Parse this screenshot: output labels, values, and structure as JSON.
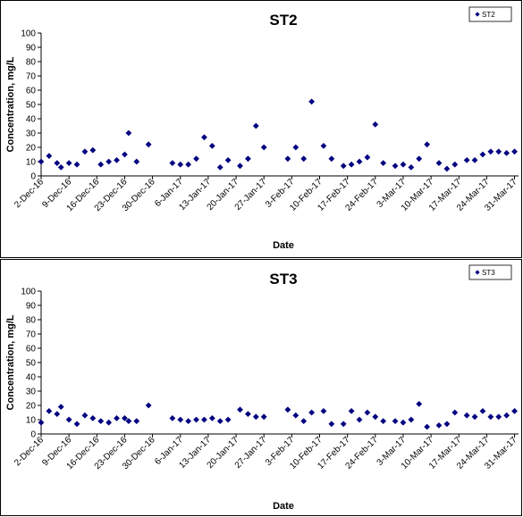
{
  "chart_data": [
    {
      "type": "scatter",
      "title": "ST2",
      "xlabel": "Date",
      "ylabel": "Concentration, mg/L",
      "ylim": [
        0,
        100
      ],
      "yticks": [
        0,
        10,
        20,
        30,
        40,
        50,
        60,
        70,
        80,
        90,
        100
      ],
      "xlim": [
        "2016-12-02",
        "2017-04-01"
      ],
      "xticks": [
        "2016-12-02",
        "2016-12-09",
        "2016-12-16",
        "2016-12-23",
        "2016-12-30",
        "2017-01-06",
        "2017-01-13",
        "2017-01-20",
        "2017-01-27",
        "2017-02-03",
        "2017-02-10",
        "2017-02-17",
        "2017-02-24",
        "2017-03-03",
        "2017-03-10",
        "2017-03-17",
        "2017-03-24",
        "2017-03-31"
      ],
      "xtick_labels": [
        "2-Dec-16",
        "9-Dec-16",
        "16-Dec-16",
        "23-Dec-16",
        "30-Dec-16",
        "6-Jan-17",
        "13-Jan-17",
        "20-Jan-17",
        "27-Jan-17",
        "3-Feb-17",
        "10-Feb-17",
        "17-Feb-17",
        "24-Feb-17",
        "3-Mar-17",
        "10-Mar-17",
        "17-Mar-17",
        "24-Mar-17",
        "31-Mar-17"
      ],
      "legend": "top-right",
      "grid": false,
      "series": [
        {
          "name": "ST2",
          "color": "#000080",
          "x": [
            "2016-12-02",
            "2016-12-04",
            "2016-12-06",
            "2016-12-07",
            "2016-12-09",
            "2016-12-11",
            "2016-12-13",
            "2016-12-15",
            "2016-12-17",
            "2016-12-19",
            "2016-12-21",
            "2016-12-23",
            "2016-12-24",
            "2016-12-26",
            "2016-12-29",
            "2017-01-04",
            "2017-01-06",
            "2017-01-08",
            "2017-01-10",
            "2017-01-12",
            "2017-01-14",
            "2017-01-16",
            "2017-01-18",
            "2017-01-21",
            "2017-01-23",
            "2017-01-25",
            "2017-01-27",
            "2017-02-02",
            "2017-02-04",
            "2017-02-06",
            "2017-02-08",
            "2017-02-11",
            "2017-02-13",
            "2017-02-16",
            "2017-02-18",
            "2017-02-20",
            "2017-02-22",
            "2017-02-24",
            "2017-02-26",
            "2017-03-01",
            "2017-03-03",
            "2017-03-05",
            "2017-03-07",
            "2017-03-09",
            "2017-03-12",
            "2017-03-14",
            "2017-03-16",
            "2017-03-19",
            "2017-03-21",
            "2017-03-23",
            "2017-03-25",
            "2017-03-27",
            "2017-03-29",
            "2017-03-31"
          ],
          "y": [
            10,
            14,
            9,
            6,
            9,
            8,
            17,
            18,
            8,
            10,
            11,
            15,
            30,
            10,
            22,
            9,
            8,
            8,
            12,
            27,
            21,
            6,
            11,
            7,
            12,
            35,
            20,
            12,
            20,
            12,
            52,
            21,
            12,
            7,
            8,
            10,
            13,
            36,
            9,
            7,
            8,
            6,
            12,
            22,
            9,
            5,
            8,
            11,
            11,
            15,
            17,
            17,
            16,
            17
          ]
        }
      ]
    },
    {
      "type": "scatter",
      "title": "ST3",
      "xlabel": "Date",
      "ylabel": "Concentration, mg/L",
      "ylim": [
        0,
        100
      ],
      "yticks": [
        0,
        10,
        20,
        30,
        40,
        50,
        60,
        70,
        80,
        90,
        100
      ],
      "xlim": [
        "2016-12-02",
        "2017-04-01"
      ],
      "xticks": [
        "2016-12-02",
        "2016-12-09",
        "2016-12-16",
        "2016-12-23",
        "2016-12-30",
        "2017-01-06",
        "2017-01-13",
        "2017-01-20",
        "2017-01-27",
        "2017-02-03",
        "2017-02-10",
        "2017-02-17",
        "2017-02-24",
        "2017-03-03",
        "2017-03-10",
        "2017-03-17",
        "2017-03-24",
        "2017-03-31"
      ],
      "xtick_labels": [
        "2-Dec-16",
        "9-Dec-16",
        "16-Dec-16",
        "23-Dec-16",
        "30-Dec-16",
        "6-Jan-17",
        "13-Jan-17",
        "20-Jan-17",
        "27-Jan-17",
        "3-Feb-17",
        "10-Feb-17",
        "17-Feb-17",
        "24-Feb-17",
        "3-Mar-17",
        "10-Mar-17",
        "17-Mar-17",
        "24-Mar-17",
        "31-Mar-17"
      ],
      "legend": "top-right",
      "grid": false,
      "series": [
        {
          "name": "ST3",
          "color": "#000080",
          "x": [
            "2016-12-02",
            "2016-12-04",
            "2016-12-06",
            "2016-12-07",
            "2016-12-09",
            "2016-12-11",
            "2016-12-13",
            "2016-12-15",
            "2016-12-17",
            "2016-12-19",
            "2016-12-21",
            "2016-12-23",
            "2016-12-24",
            "2016-12-26",
            "2016-12-29",
            "2017-01-04",
            "2017-01-06",
            "2017-01-08",
            "2017-01-10",
            "2017-01-12",
            "2017-01-14",
            "2017-01-16",
            "2017-01-18",
            "2017-01-21",
            "2017-01-23",
            "2017-01-25",
            "2017-01-27",
            "2017-02-02",
            "2017-02-04",
            "2017-02-06",
            "2017-02-08",
            "2017-02-11",
            "2017-02-13",
            "2017-02-16",
            "2017-02-18",
            "2017-02-20",
            "2017-02-22",
            "2017-02-24",
            "2017-02-26",
            "2017-03-01",
            "2017-03-03",
            "2017-03-05",
            "2017-03-07",
            "2017-03-09",
            "2017-03-12",
            "2017-03-14",
            "2017-03-16",
            "2017-03-19",
            "2017-03-21",
            "2017-03-23",
            "2017-03-25",
            "2017-03-27",
            "2017-03-29",
            "2017-03-31"
          ],
          "y": [
            8,
            16,
            14,
            19,
            10,
            7,
            13,
            11,
            9,
            8,
            11,
            11,
            9,
            9,
            20,
            11,
            10,
            9,
            10,
            10,
            11,
            9,
            10,
            17,
            14,
            12,
            12,
            17,
            13,
            9,
            15,
            16,
            7,
            7,
            16,
            10,
            15,
            12,
            9,
            9,
            8,
            10,
            21,
            5,
            6,
            7,
            15,
            13,
            12,
            16,
            12,
            12,
            13,
            16
          ]
        }
      ]
    }
  ]
}
